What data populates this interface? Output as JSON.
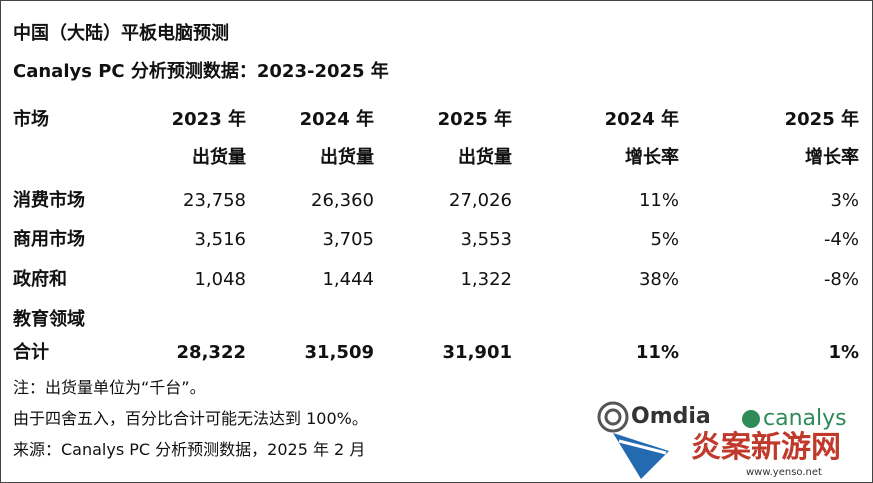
{
  "header": {
    "title": "中国（大陆）平板电脑预测",
    "subtitle": "Canalys PC 分析预测数据：2023-2025 年"
  },
  "table": {
    "columns": [
      [
        "市场"
      ],
      [
        "2023 年",
        "出货量"
      ],
      [
        "2024 年",
        "出货量"
      ],
      [
        "2025 年",
        "出货量"
      ],
      [
        "2024 年",
        "增长率"
      ],
      [
        "2025 年",
        "增长率"
      ]
    ],
    "rows": [
      [
        [
          "消费市场"
        ],
        "23,758",
        "26,360",
        "27,026",
        "11%",
        "3%"
      ],
      [
        [
          "商用市场"
        ],
        "3,516",
        "3,705",
        "3,553",
        "5%",
        "-4%"
      ],
      [
        [
          "政府和",
          "教育领域"
        ],
        "1,048",
        "1,444",
        "1,322",
        "38%",
        "-8%"
      ]
    ],
    "total": [
      [
        "合计"
      ],
      "28,322",
      "31,509",
      "31,901",
      "11%",
      "1%"
    ]
  },
  "notes": [
    "注：出货量单位为“千台”。",
    "由于四舍五入，百分比合计可能无法达到 100%。",
    "来源：Canalys PC 分析预测数据，2025 年 2 月"
  ],
  "logos": [
    "Omdia",
    "canalys"
  ],
  "watermark": {
    "name": "炎案新游网",
    "url": "www.yenso.net"
  }
}
